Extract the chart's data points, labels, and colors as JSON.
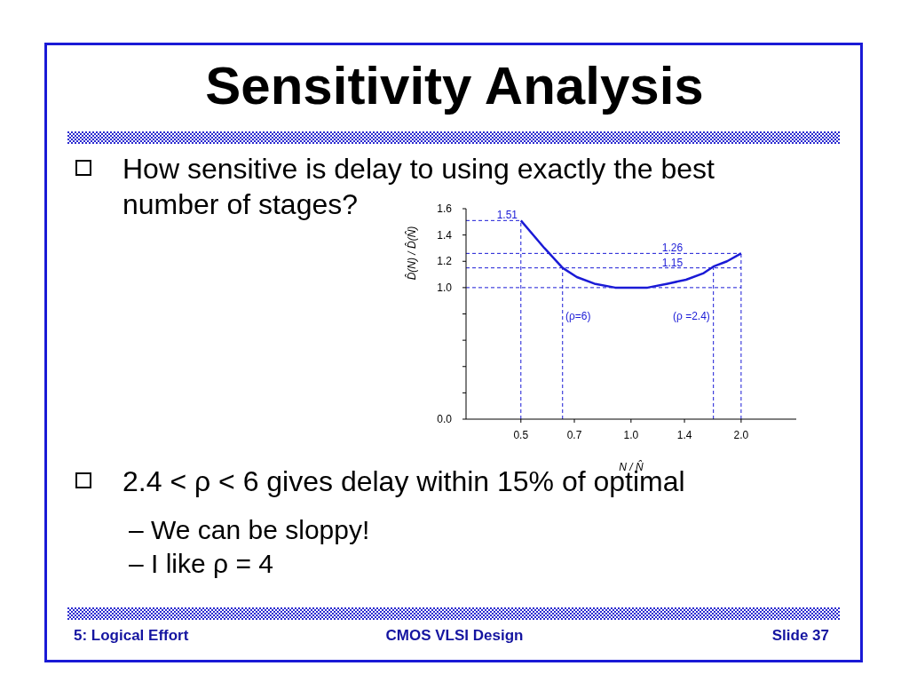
{
  "chart_data": {
    "type": "line",
    "title": "Sensitivity Analysis",
    "xlabel": "N / N̂",
    "ylabel": "D̂(N) / D̂(N̂)",
    "log": "x",
    "x": [
      0.5,
      0.58,
      0.65,
      0.711,
      0.794,
      0.905,
      1.0,
      1.11,
      1.26,
      1.414,
      1.58,
      1.68,
      1.83,
      2.0
    ],
    "series": [
      {
        "color": "#1a1ad6",
        "values": [
          1.51,
          1.3,
          1.15,
          1.08,
          1.03,
          1.0,
          1.0,
          1.0,
          1.03,
          1.06,
          1.11,
          1.16,
          1.2,
          1.26
        ]
      }
    ],
    "xlim": [
      0.354,
      2.83
    ],
    "ylim": [
      0,
      1.6
    ],
    "xticks": [
      0.5,
      0.7,
      {
        "value": 1,
        "label": "1.0"
      },
      1.4,
      {
        "value": 2,
        "label": "2.0"
      }
    ],
    "yticks": [
      {
        "value": 0,
        "label": "0.0"
      },
      {
        "value": 0.2,
        "label": null
      },
      {
        "value": 0.4,
        "label": null
      },
      {
        "value": 0.6,
        "label": null
      },
      {
        "value": 0.8,
        "label": null
      },
      {
        "value": 1,
        "label": "1.0"
      },
      1.2,
      1.4,
      1.6
    ],
    "ref_lines": [
      {
        "axis": "y",
        "value": 1.51,
        "label": "1.51",
        "color": "#1a1ad6",
        "line_style": "dashed"
      },
      {
        "axis": "y",
        "value": 1.26,
        "label": "1.26",
        "color": "#1a1ad6",
        "line_style": "dashed"
      },
      {
        "axis": "y",
        "value": 1.15,
        "label": "1.15",
        "color": "#1a1ad6",
        "line_style": "dashed"
      },
      {
        "axis": "y",
        "value": 1.0,
        "label": null,
        "color": "#1a1ad6",
        "line_style": "dashed"
      },
      {
        "axis": "x",
        "value": 0.5,
        "label": null,
        "color": "#1a1ad6",
        "line_style": "dashed"
      },
      {
        "axis": "x",
        "value": 0.65,
        "label": null,
        "color": "#1a1ad6",
        "line_style": "dashed"
      },
      {
        "axis": "x",
        "value": 1.68,
        "label": null,
        "color": "#1a1ad6",
        "line_style": "dashed"
      },
      {
        "axis": "x",
        "value": 2.0,
        "label": null,
        "color": "#1a1ad6",
        "line_style": "dashed"
      }
    ],
    "marker": "none",
    "line_style": "solid",
    "grid": false,
    "legend": false,
    "annotations": [
      "How sensitive is delay to using exactly the best number of stages?",
      "2.4 < ρ < 6 gives delay within 15% of optimal",
      "– We can be sloppy!",
      "– I like ρ = 4",
      "5: Logical Effort",
      "CMOS VLSI Design",
      "Slide 37",
      "(ρ=6)",
      "(ρ =2.4)"
    ]
  }
}
